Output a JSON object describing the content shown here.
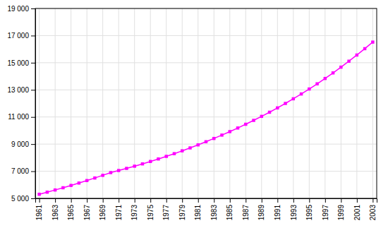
{
  "chart_data": {
    "type": "line",
    "x": [
      1961,
      1962,
      1963,
      1964,
      1965,
      1966,
      1967,
      1968,
      1969,
      1970,
      1971,
      1972,
      1973,
      1974,
      1975,
      1976,
      1977,
      1978,
      1979,
      1980,
      1981,
      1982,
      1983,
      1984,
      1985,
      1986,
      1987,
      1988,
      1989,
      1990,
      1991,
      1992,
      1993,
      1994,
      1995,
      1996,
      1997,
      1998,
      1999,
      2000,
      2001,
      2002,
      2003
    ],
    "values": [
      5302,
      5457,
      5617,
      5782,
      5953,
      6129,
      6312,
      6501,
      6697,
      6899,
      7053,
      7209,
      7372,
      7542,
      7719,
      7904,
      8096,
      8296,
      8504,
      8720,
      8943,
      9175,
      9415,
      9664,
      9921,
      10187,
      10463,
      10749,
      11045,
      11351,
      11669,
      11999,
      12341,
      12695,
      13063,
      13444,
      13839,
      14249,
      14673,
      15112,
      15567,
      16036,
      16521
    ],
    "color": "#FF00FF",
    "marker": "square",
    "xlim": [
      1960.5,
      2003.5
    ],
    "xticks": [
      1961,
      1963,
      1965,
      1967,
      1969,
      1971,
      1973,
      1975,
      1977,
      1979,
      1981,
      1983,
      1985,
      1987,
      1989,
      1991,
      1993,
      1995,
      1997,
      1999,
      2001,
      2003
    ],
    "ylim": [
      5000,
      19000
    ],
    "yticks": [
      {
        "value": 5000,
        "label": "5 000"
      },
      {
        "value": 7000,
        "label": "7 000"
      },
      {
        "value": 9000,
        "label": "9 000"
      },
      {
        "value": 11000,
        "label": "11 000"
      },
      {
        "value": 13000,
        "label": "13 000"
      },
      {
        "value": 15000,
        "label": "15 000"
      },
      {
        "value": 17000,
        "label": "17 000"
      },
      {
        "value": 19000,
        "label": "19 000"
      }
    ],
    "grid": true
  }
}
